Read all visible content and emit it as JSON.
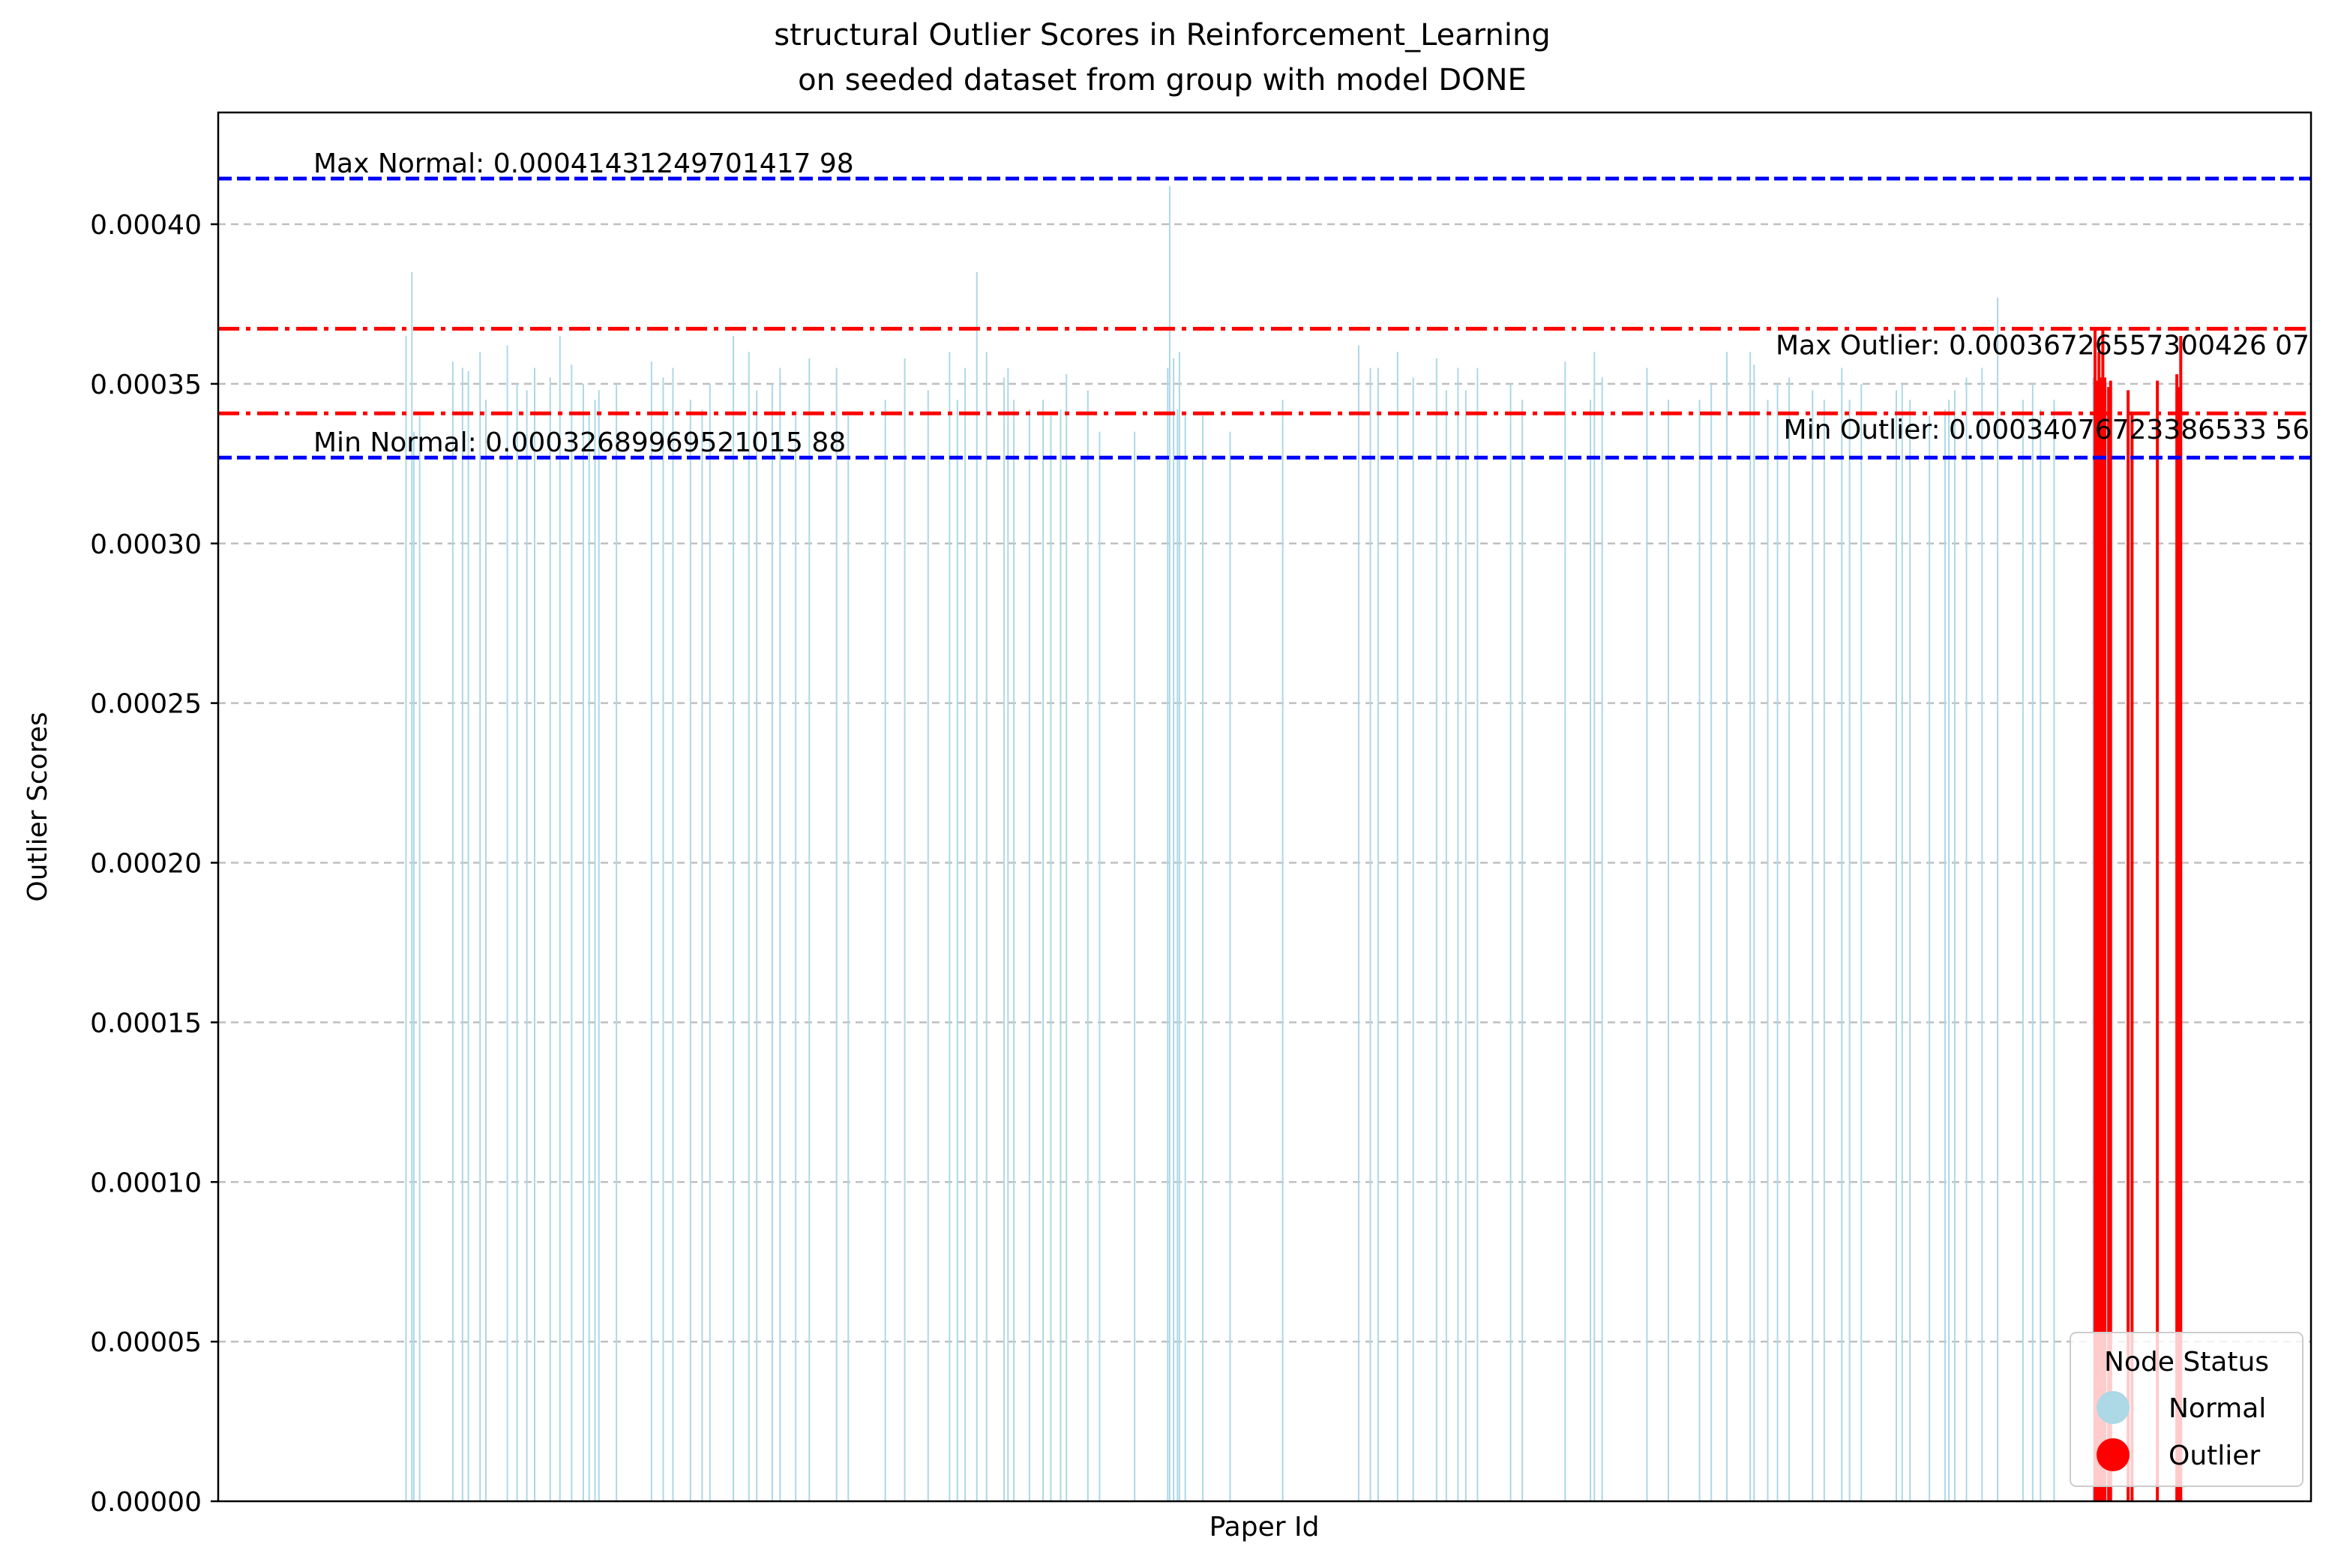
{
  "chart_data": {
    "type": "bar",
    "title": "structural Outlier Scores in Reinforcement_Learning",
    "subtitle": "on seeded dataset from group with model DONE",
    "xlabel": "Paper Id",
    "ylabel": "Outlier Scores",
    "ylim": [
      0,
      0.000435
    ],
    "yticks": [
      "0.00000",
      "0.00005",
      "0.00010",
      "0.00015",
      "0.00020",
      "0.00025",
      "0.00030",
      "0.00035",
      "0.00040"
    ],
    "ytick_values": [
      0,
      5e-05,
      0.0001,
      0.00015,
      0.0002,
      0.00025,
      0.0003,
      0.00035,
      0.0004
    ],
    "grid": "y-dashed",
    "xlim": [
      0,
      1000
    ],
    "normal_color": "#add8e6",
    "outlier_color": "#ff0000",
    "reference_lines": [
      {
        "name": "max-normal-line",
        "label": "Max Normal: 0.00041431249701417 98",
        "value": 0.00041431249701417,
        "color": "#0000ff",
        "style": "dashed"
      },
      {
        "name": "max-outlier-line",
        "label": "Max Outlier: 0.00036726557300426 07",
        "value": 0.00036726557300426,
        "color": "#ff0000",
        "style": "dashdot"
      },
      {
        "name": "min-outlier-line",
        "label": "Min Outlier: 0.00034076723386533 56",
        "value": 0.00034076723386533,
        "color": "#ff0000",
        "style": "dashdot"
      },
      {
        "name": "min-normal-line",
        "label": "Min Normal: 0.00032689969521015 88",
        "value": 0.00032689969521015,
        "color": "#0000ff",
        "style": "dashed"
      }
    ],
    "series": [
      {
        "name": "Normal",
        "x": [
          46,
          49,
          50,
          53,
          70,
          75,
          78,
          84,
          87,
          98,
          103,
          108,
          112,
          120,
          125,
          131,
          137,
          140,
          143,
          145,
          154,
          172,
          178,
          183,
          192,
          198,
          202,
          214,
          222,
          226,
          234,
          238,
          246,
          253,
          267,
          273,
          292,
          302,
          314,
          325,
          329,
          333,
          339,
          344,
          353,
          355,
          358,
          366,
          373,
          377,
          382,
          385,
          396,
          402,
          420,
          437,
          438,
          440,
          442,
          443,
          446,
          455,
          469,
          496,
          535,
          541,
          545,
          555,
          563,
          575,
          580,
          586,
          590,
          596,
          613,
          619,
          641,
          654,
          656,
          660,
          683,
          694,
          710,
          716,
          724,
          736,
          738,
          745,
          750,
          756,
          768,
          774,
          783,
          787,
          793,
          811,
          814,
          818,
          828,
          836,
          838,
          841,
          847,
          855,
          863,
          876,
          881,
          885,
          892,
          912,
          919
        ],
        "values": [
          0.000365,
          0.000385,
          0.000335,
          0.00034,
          0.000357,
          0.000355,
          0.000354,
          0.00036,
          0.000345,
          0.000362,
          0.00035,
          0.000348,
          0.000355,
          0.000352,
          0.000365,
          0.000356,
          0.00035,
          0.00034,
          0.000345,
          0.000348,
          0.00035,
          0.000357,
          0.000352,
          0.000355,
          0.000345,
          0.000342,
          0.00035,
          0.000365,
          0.00036,
          0.000348,
          0.00035,
          0.000355,
          0.00034,
          0.000358,
          0.000355,
          0.00034,
          0.000345,
          0.000358,
          0.000348,
          0.00036,
          0.000345,
          0.000355,
          0.000385,
          0.00036,
          0.000352,
          0.000355,
          0.000345,
          0.000342,
          0.000345,
          0.00034,
          0.000342,
          0.000353,
          0.000348,
          0.000335,
          0.000335,
          0.000355,
          0.000412,
          0.000358,
          0.000342,
          0.00036,
          0.00034,
          0.00034,
          0.000335,
          0.000345,
          0.000362,
          0.000355,
          0.000355,
          0.00036,
          0.000352,
          0.000358,
          0.000348,
          0.000355,
          0.000348,
          0.000355,
          0.00035,
          0.000345,
          0.000357,
          0.000345,
          0.00036,
          0.000352,
          0.000355,
          0.000345,
          0.000345,
          0.00035,
          0.00036,
          0.00036,
          0.000356,
          0.000345,
          0.00035,
          0.000352,
          0.000348,
          0.000345,
          0.000355,
          0.000345,
          0.00035,
          0.000348,
          0.00035,
          0.000345,
          0.00034,
          0.000342,
          0.000345,
          0.000348,
          0.000352,
          0.000355,
          0.000377,
          0.000345,
          0.00035,
          0.000342,
          0.000345,
          0.000352,
          0.00035
        ]
      },
      {
        "name": "Outlier",
        "x": [
          913,
          914,
          915,
          916,
          917,
          918,
          920,
          921,
          930,
          932,
          945,
          955,
          956,
          957
        ],
        "values": [
          0.0003672,
          0.000351,
          0.00036,
          0.000352,
          0.0003672,
          0.000352,
          0.000349,
          0.000351,
          0.000348,
          0.000341,
          0.000351,
          0.000353,
          0.000349,
          0.000365
        ]
      }
    ],
    "legend": {
      "title": "Node Status",
      "entries": [
        {
          "label": "Normal",
          "color": "#add8e6"
        },
        {
          "label": "Outlier",
          "color": "#ff0000"
        }
      ],
      "placement": "bottom-right"
    }
  }
}
